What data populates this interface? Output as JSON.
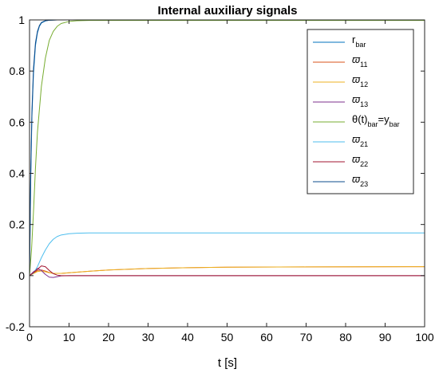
{
  "chart_data": {
    "type": "line",
    "title": "Internal auxiliary signals",
    "xlabel": "t [s]",
    "ylabel": "",
    "xlim": [
      0,
      100
    ],
    "ylim": [
      -0.2,
      1
    ],
    "xticks": [
      0,
      10,
      20,
      30,
      40,
      50,
      60,
      70,
      80,
      90,
      100
    ],
    "yticks": [
      -0.2,
      0,
      0.2,
      0.4,
      0.6,
      0.8,
      1
    ],
    "xtick_labels": [
      "0",
      "10",
      "20",
      "30",
      "40",
      "50",
      "60",
      "70",
      "80",
      "90",
      "100"
    ],
    "ytick_labels": [
      "-0.2",
      "0",
      "0.2",
      "0.4",
      "0.6",
      "0.8",
      "1"
    ],
    "grid": false,
    "legend_position": "top-right",
    "series": [
      {
        "legend_main": "r",
        "legend_sub": "bar",
        "legend_suffix": "",
        "color": "#0072BD",
        "x": [
          0,
          0.3,
          0.6,
          1,
          1.5,
          2,
          2.5,
          3,
          4,
          5,
          7,
          10,
          100
        ],
        "y": [
          0,
          0.37,
          0.62,
          0.79,
          0.9,
          0.95,
          0.975,
          0.988,
          0.996,
          0.999,
          1.0,
          1.0,
          1.0
        ]
      },
      {
        "legend_main": "ϖ",
        "legend_sub": "11",
        "legend_suffix": "",
        "color": "#D95319",
        "x": [
          0,
          1,
          2,
          3,
          4,
          5,
          6,
          8,
          10,
          15,
          20,
          30,
          40,
          50,
          70,
          100
        ],
        "y": [
          0,
          0.01,
          0.02,
          0.022,
          0.018,
          0.012,
          0.009,
          0.009,
          0.011,
          0.017,
          0.022,
          0.028,
          0.031,
          0.033,
          0.034,
          0.035
        ]
      },
      {
        "legend_main": "ϖ",
        "legend_sub": "12",
        "legend_suffix": "",
        "color": "#EDB120",
        "x": [
          0,
          1,
          2,
          3,
          4,
          5,
          6,
          8,
          10,
          15,
          20,
          30,
          40,
          50,
          70,
          100
        ],
        "y": [
          0,
          0.008,
          0.016,
          0.018,
          0.015,
          0.011,
          0.009,
          0.009,
          0.011,
          0.017,
          0.022,
          0.028,
          0.031,
          0.033,
          0.034,
          0.035
        ]
      },
      {
        "legend_main": "ϖ",
        "legend_sub": "13",
        "legend_suffix": "",
        "color": "#7E2F8E",
        "x": [
          0,
          1,
          2,
          3,
          4,
          5,
          6,
          7,
          8,
          10,
          100
        ],
        "y": [
          0,
          0.015,
          0.028,
          0.02,
          0.005,
          -0.006,
          -0.007,
          -0.004,
          -0.001,
          0,
          0
        ]
      },
      {
        "legend_main": "θ(t)",
        "legend_sub": "bar",
        "legend_suffix": "=y",
        "legend_sub2": "bar",
        "color": "#77AC30",
        "x": [
          0,
          0.5,
          1,
          1.5,
          2,
          3,
          4,
          5,
          6,
          7,
          8,
          10,
          12,
          15,
          100
        ],
        "y": [
          0,
          0.1,
          0.25,
          0.42,
          0.56,
          0.74,
          0.85,
          0.92,
          0.955,
          0.975,
          0.986,
          0.994,
          0.997,
          0.998,
          0.998
        ]
      },
      {
        "legend_main": "ϖ",
        "legend_sub": "21",
        "legend_suffix": "",
        "color": "#4DBEEE",
        "x": [
          0,
          1,
          2,
          3,
          4,
          5,
          6,
          7,
          8,
          10,
          12,
          15,
          100
        ],
        "y": [
          0,
          0.01,
          0.035,
          0.07,
          0.1,
          0.125,
          0.142,
          0.153,
          0.159,
          0.164,
          0.166,
          0.167,
          0.167
        ]
      },
      {
        "legend_main": "ϖ",
        "legend_sub": "22",
        "legend_suffix": "",
        "color": "#A2142F",
        "x": [
          0,
          1,
          2,
          3,
          4,
          5,
          6,
          7,
          8,
          10,
          100
        ],
        "y": [
          0,
          0.012,
          0.025,
          0.038,
          0.035,
          0.02,
          0.008,
          0.002,
          0,
          0,
          0
        ]
      },
      {
        "legend_main": "ϖ",
        "legend_sub": "23",
        "legend_suffix": "",
        "color": "#0E4C8C",
        "x": [
          0,
          0.3,
          0.6,
          1,
          1.5,
          2,
          2.5,
          3,
          4,
          5,
          7,
          10,
          100
        ],
        "y": [
          0,
          0.4,
          0.64,
          0.81,
          0.91,
          0.955,
          0.978,
          0.99,
          0.997,
          0.999,
          1.0,
          1.0,
          1.0
        ]
      }
    ]
  }
}
